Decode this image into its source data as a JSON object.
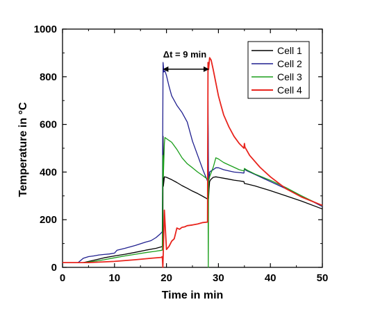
{
  "chart_data": {
    "type": "line",
    "title": "",
    "xlabel": "Time in min",
    "ylabel": "Temperature in °C",
    "xlim": [
      0,
      50
    ],
    "ylim": [
      0,
      1000
    ],
    "xticks": [
      "0",
      "10",
      "20",
      "30",
      "40",
      "50"
    ],
    "yticks": [
      "0",
      "200",
      "400",
      "600",
      "800",
      "1000"
    ],
    "grid": false,
    "legend_position": "top-right",
    "annotation": {
      "text": "Δt = 9 min",
      "from_x": 19.3,
      "to_x": 28.2,
      "y": 855
    },
    "series": [
      {
        "name": "Cell 1",
        "color": "#000000",
        "x": [
          0,
          4,
          6,
          8,
          10,
          12,
          14,
          16,
          18,
          19.3,
          19.35,
          19.4,
          19.6,
          20,
          21,
          22,
          23,
          24,
          25,
          26,
          27,
          27.9,
          28.0,
          28.1,
          28.2,
          28.3,
          28.5,
          29,
          29.5,
          30,
          31,
          32,
          33,
          34,
          34.9,
          35.0,
          35.5,
          37,
          40,
          43,
          46,
          50
        ],
        "y": [
          20,
          20,
          30,
          40,
          48,
          55,
          63,
          72,
          80,
          88,
          550,
          340,
          380,
          378,
          368,
          356,
          343,
          332,
          320,
          310,
          298,
          287,
          600,
          290,
          330,
          360,
          368,
          378,
          380,
          378,
          374,
          370,
          366,
          363,
          360,
          352,
          350,
          342,
          322,
          300,
          278,
          245
        ]
      },
      {
        "name": "Cell 2",
        "color": "#1f1f8f",
        "x": [
          0,
          3,
          4,
          5,
          6,
          7,
          8,
          9,
          10,
          10.5,
          12,
          14,
          16,
          17,
          18,
          18.8,
          19.2,
          19.35,
          19.5,
          19.7,
          20,
          20.5,
          21,
          22,
          23,
          24,
          25,
          26,
          27,
          27.9,
          28.0,
          28.1,
          28.3,
          28.6,
          29,
          29.5,
          30,
          31,
          32,
          33,
          34,
          34.9,
          35.0,
          35.5,
          37,
          40,
          43,
          46,
          50
        ],
        "y": [
          20,
          20,
          38,
          45,
          48,
          52,
          54,
          56,
          60,
          72,
          80,
          92,
          106,
          112,
          125,
          140,
          150,
          860,
          820,
          825,
          805,
          760,
          720,
          680,
          650,
          610,
          530,
          470,
          410,
          362,
          700,
          350,
          400,
          405,
          410,
          418,
          418,
          410,
          405,
          400,
          398,
          396,
          412,
          405,
          390,
          360,
          330,
          300,
          255
        ]
      },
      {
        "name": "Cell 3",
        "color": "#1a9e1a",
        "x": [
          0,
          4,
          6,
          8,
          10,
          12,
          14,
          16,
          18,
          19.2,
          19.3,
          19.4,
          19.6,
          19.7,
          20,
          21,
          22,
          23,
          24,
          25,
          26,
          27,
          27.9,
          28.0,
          28.05,
          28.1,
          28.3,
          29,
          29.5,
          30,
          31,
          32,
          33,
          34,
          34.9,
          35.0,
          35.5,
          37,
          40,
          43,
          46,
          50
        ],
        "y": [
          20,
          20,
          25,
          32,
          40,
          48,
          55,
          62,
          68,
          72,
          470,
          380,
          520,
          545,
          540,
          525,
          495,
          460,
          435,
          418,
          400,
          385,
          370,
          350,
          0,
          360,
          380,
          420,
          460,
          455,
          440,
          430,
          420,
          410,
          405,
          415,
          408,
          392,
          365,
          335,
          300,
          258
        ]
      },
      {
        "name": "Cell 4",
        "color": "#e8231c",
        "x": [
          0,
          5,
          10,
          14,
          17,
          19.0,
          19.2,
          19.3,
          19.4,
          19.6,
          20,
          20.5,
          21,
          21.5,
          22,
          22.5,
          23,
          23.5,
          24,
          25,
          26,
          27,
          27.9,
          28.0,
          28.1,
          28.3,
          28.6,
          29,
          30,
          30.5,
          31,
          32,
          33,
          34,
          34.9,
          35.0,
          35.1,
          36,
          38,
          40,
          43,
          46,
          50
        ],
        "y": [
          20,
          20,
          25,
          32,
          38,
          42,
          45,
          0,
          70,
          240,
          75,
          88,
          110,
          120,
          165,
          160,
          168,
          170,
          175,
          178,
          182,
          188,
          190,
          860,
          830,
          880,
          870,
          830,
          720,
          680,
          640,
          590,
          550,
          520,
          500,
          520,
          505,
          470,
          420,
          380,
          330,
          295,
          260
        ]
      }
    ]
  }
}
